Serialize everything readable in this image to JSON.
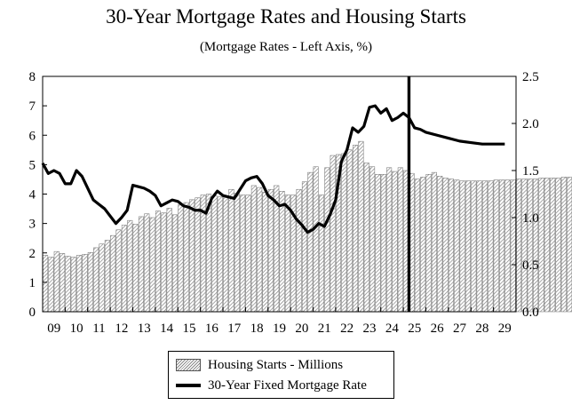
{
  "chart_data": {
    "type": "bar+line",
    "title": "30-Year Mortgage Rates and Housing Starts",
    "subtitle": "(Mortgage Rates - Left Axis, %)",
    "x_tick_labels": [
      "09",
      "10",
      "11",
      "12",
      "13",
      "14",
      "15",
      "16",
      "17",
      "18",
      "19",
      "20",
      "21",
      "22",
      "23",
      "24",
      "25",
      "26",
      "27",
      "28",
      "29"
    ],
    "left_axis": {
      "min": 0,
      "max": 8,
      "ticks": [
        "0",
        "1",
        "2",
        "3",
        "4",
        "5",
        "6",
        "7",
        "8"
      ]
    },
    "right_axis": {
      "min": 0,
      "max": 2.5,
      "ticks": [
        "0.0",
        "0.5",
        "1.0",
        "1.5",
        "2.0",
        "2.5"
      ]
    },
    "forecast_divider_year": 2025.25,
    "legend_placement": "bottom-center",
    "series": [
      {
        "name": "Housing Starts - Millions",
        "kind": "bar",
        "axis": "right",
        "start_year": 2009.0,
        "step": 0.25,
        "values": [
          0.6,
          0.58,
          0.64,
          0.62,
          0.59,
          0.58,
          0.6,
          0.61,
          0.63,
          0.68,
          0.72,
          0.76,
          0.81,
          0.87,
          0.92,
          0.97,
          0.93,
          1.01,
          1.04,
          1.0,
          1.07,
          1.05,
          1.1,
          1.03,
          1.14,
          1.16,
          1.19,
          1.21,
          1.24,
          1.25,
          1.23,
          1.22,
          1.22,
          1.3,
          1.26,
          1.24,
          1.24,
          1.34,
          1.32,
          1.27,
          1.3,
          1.34,
          1.28,
          1.24,
          1.24,
          1.3,
          1.38,
          1.48,
          1.54,
          1.24,
          1.53,
          1.66,
          1.67,
          1.68,
          1.72,
          1.77,
          1.81,
          1.58,
          1.54,
          1.46,
          1.46,
          1.53,
          1.49,
          1.53,
          1.5,
          1.47,
          1.41,
          1.43,
          1.46,
          1.48,
          1.44,
          1.42,
          1.41,
          1.4,
          1.39,
          1.39,
          1.39,
          1.39,
          1.39,
          1.39,
          1.4,
          1.4,
          1.4,
          1.4,
          1.41,
          1.41,
          1.41,
          1.41,
          1.42,
          1.42,
          1.42,
          1.42,
          1.43,
          1.43,
          1.43,
          1.43,
          1.44,
          1.44,
          1.44,
          1.44,
          1.44,
          1.45,
          1.45
        ]
      },
      {
        "name": "30-Year Fixed Mortgage Rate",
        "kind": "line",
        "axis": "left",
        "points": [
          [
            2009.0,
            5.05
          ],
          [
            2009.25,
            4.7
          ],
          [
            2009.5,
            4.8
          ],
          [
            2009.75,
            4.7
          ],
          [
            2010.0,
            4.35
          ],
          [
            2010.25,
            4.35
          ],
          [
            2010.5,
            4.8
          ],
          [
            2010.75,
            4.6
          ],
          [
            2011.0,
            4.2
          ],
          [
            2011.25,
            3.8
          ],
          [
            2011.5,
            3.65
          ],
          [
            2011.75,
            3.5
          ],
          [
            2012.0,
            3.25
          ],
          [
            2012.25,
            3.0
          ],
          [
            2012.5,
            3.2
          ],
          [
            2012.75,
            3.45
          ],
          [
            2013.0,
            4.3
          ],
          [
            2013.25,
            4.25
          ],
          [
            2013.5,
            4.2
          ],
          [
            2013.75,
            4.1
          ],
          [
            2014.0,
            3.95
          ],
          [
            2014.25,
            3.6
          ],
          [
            2014.5,
            3.7
          ],
          [
            2014.75,
            3.8
          ],
          [
            2015.0,
            3.75
          ],
          [
            2015.25,
            3.6
          ],
          [
            2015.5,
            3.55
          ],
          [
            2015.75,
            3.45
          ],
          [
            2016.0,
            3.45
          ],
          [
            2016.25,
            3.35
          ],
          [
            2016.5,
            3.85
          ],
          [
            2016.75,
            4.1
          ],
          [
            2017.0,
            3.95
          ],
          [
            2017.25,
            3.9
          ],
          [
            2017.5,
            3.85
          ],
          [
            2017.75,
            4.15
          ],
          [
            2018.0,
            4.45
          ],
          [
            2018.25,
            4.55
          ],
          [
            2018.5,
            4.6
          ],
          [
            2018.75,
            4.35
          ],
          [
            2019.0,
            3.95
          ],
          [
            2019.25,
            3.8
          ],
          [
            2019.5,
            3.6
          ],
          [
            2019.75,
            3.65
          ],
          [
            2020.0,
            3.45
          ],
          [
            2020.25,
            3.15
          ],
          [
            2020.5,
            2.95
          ],
          [
            2020.75,
            2.7
          ],
          [
            2021.0,
            2.8
          ],
          [
            2021.25,
            3.0
          ],
          [
            2021.5,
            2.9
          ],
          [
            2021.75,
            3.3
          ],
          [
            2022.0,
            3.8
          ],
          [
            2022.25,
            5.1
          ],
          [
            2022.5,
            5.5
          ],
          [
            2022.75,
            6.25
          ],
          [
            2023.0,
            6.1
          ],
          [
            2023.25,
            6.3
          ],
          [
            2023.5,
            6.95
          ],
          [
            2023.75,
            7.0
          ],
          [
            2024.0,
            6.75
          ],
          [
            2024.25,
            6.9
          ],
          [
            2024.5,
            6.5
          ],
          [
            2024.75,
            6.6
          ],
          [
            2025.0,
            6.75
          ],
          [
            2025.25,
            6.6
          ],
          [
            2025.5,
            6.25
          ],
          [
            2025.75,
            6.2
          ],
          [
            2026.0,
            6.1
          ],
          [
            2026.5,
            6.0
          ],
          [
            2027.0,
            5.9
          ],
          [
            2027.5,
            5.8
          ],
          [
            2028.0,
            5.75
          ],
          [
            2028.5,
            5.7
          ],
          [
            2029.0,
            5.7
          ],
          [
            2029.5,
            5.7
          ]
        ]
      }
    ]
  },
  "legend": {
    "bars_label": "Housing Starts - Millions",
    "line_label": "30-Year Fixed Mortgage Rate"
  }
}
